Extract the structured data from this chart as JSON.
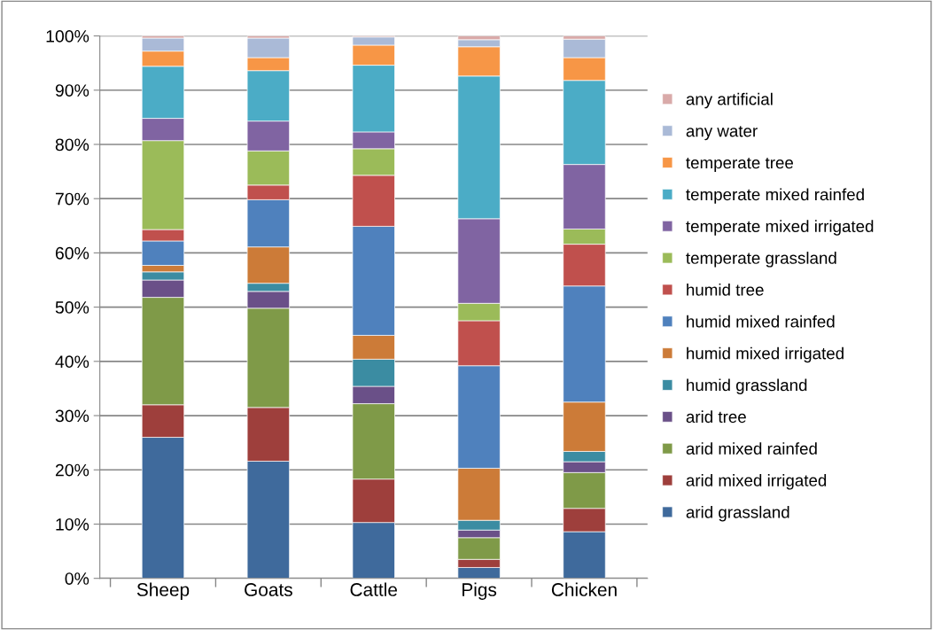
{
  "chart_data": {
    "type": "bar",
    "stacked": true,
    "grid": "y",
    "legend": "right",
    "categories": [
      "Sheep",
      "Goats",
      "Cattle",
      "Pigs",
      "Chicken"
    ],
    "ylim": [
      0,
      100
    ],
    "yticks": [
      {
        "value": 0,
        "label": "0%"
      },
      {
        "value": 10,
        "label": "10%"
      },
      {
        "value": 20,
        "label": "20%"
      },
      {
        "value": 30,
        "label": "30%"
      },
      {
        "value": 40,
        "label": "40%"
      },
      {
        "value": 50,
        "label": "50%"
      },
      {
        "value": 60,
        "label": "60%"
      },
      {
        "value": 70,
        "label": "70%"
      },
      {
        "value": 80,
        "label": "80%"
      },
      {
        "value": 90,
        "label": "90%"
      },
      {
        "value": 100,
        "label": "100%"
      }
    ],
    "series": [
      {
        "name": "arid grassland",
        "color": "#3f6a9c",
        "values": [
          26,
          21.6,
          10.3,
          2,
          8.6
        ]
      },
      {
        "name": "arid mixed irrigated",
        "color": "#9e3f3c",
        "values": [
          6,
          9.9,
          8,
          1.5,
          4.3
        ]
      },
      {
        "name": "arid mixed rainfed",
        "color": "#7f9a48",
        "values": [
          19.8,
          18.3,
          13.9,
          4,
          6.6
        ]
      },
      {
        "name": "arid tree",
        "color": "#6a5088",
        "values": [
          3.2,
          3.1,
          3.2,
          1.4,
          2
        ]
      },
      {
        "name": "humid grassland",
        "color": "#3b8ca2",
        "values": [
          1.5,
          1.5,
          5,
          1.8,
          1.9
        ]
      },
      {
        "name": "humid mixed irrigated",
        "color": "#cc7b38",
        "values": [
          1.2,
          6.7,
          4.4,
          9.6,
          9.1
        ]
      },
      {
        "name": "humid mixed rainfed",
        "color": "#4f81bd",
        "values": [
          4.5,
          8.7,
          20.1,
          18.9,
          21.4
        ]
      },
      {
        "name": "humid tree",
        "color": "#c0504d",
        "values": [
          2.1,
          2.7,
          9.4,
          8.3,
          7.7
        ]
      },
      {
        "name": "temperate grassland",
        "color": "#9bbb59",
        "values": [
          16.4,
          6.3,
          4.9,
          3.2,
          2.8
        ]
      },
      {
        "name": "temperate mixed irrigated",
        "color": "#8064a2",
        "values": [
          4.1,
          5.5,
          3.1,
          15.6,
          11.9
        ]
      },
      {
        "name": "temperate mixed rainfed",
        "color": "#4bacc6",
        "values": [
          9.6,
          9.3,
          12.3,
          26.3,
          15.5
        ]
      },
      {
        "name": "temperate tree",
        "color": "#f79646",
        "values": [
          2.8,
          2.4,
          3.7,
          5.4,
          4.2
        ]
      },
      {
        "name": "any water",
        "color": "#aabad7",
        "values": [
          2.4,
          3.6,
          1.5,
          1.3,
          3.4
        ]
      },
      {
        "name": "any artificial",
        "color": "#d9aaa9",
        "values": [
          0.4,
          0.4,
          0.2,
          0.7,
          0.6
        ]
      }
    ]
  }
}
